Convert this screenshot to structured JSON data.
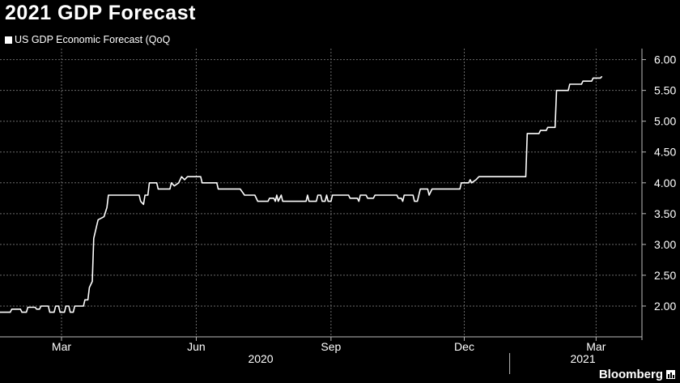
{
  "title": "2021 GDP Forecast",
  "legend_label": "US GDP Economic Forecast (QoQ",
  "brand": "Bloomberg",
  "colors": {
    "background": "#000000",
    "line": "#ffffff",
    "grid": "#6a6a6a",
    "text": "#ffffff"
  },
  "chart_data": {
    "type": "line",
    "title": "2021 GDP Forecast",
    "grid": true,
    "legend_position": "top-left",
    "x_range": [
      "2020-01-19",
      "2021-03-29"
    ],
    "ylim": [
      1.5,
      6.1
    ],
    "y_ticks": [
      "2.00",
      "2.50",
      "3.00",
      "3.50",
      "4.00",
      "4.50",
      "5.00",
      "5.50",
      "6.00"
    ],
    "x_ticks": [
      {
        "date": "2020-03-01",
        "label": "Mar"
      },
      {
        "date": "2020-06-01",
        "label": "Jun"
      },
      {
        "date": "2020-09-01",
        "label": "Sep"
      },
      {
        "date": "2020-12-01",
        "label": "Dec"
      },
      {
        "date": "2021-03-01",
        "label": "Mar"
      }
    ],
    "year_labels": [
      {
        "date": "2020-07-15",
        "label": "2020"
      },
      {
        "date": "2021-02-20",
        "label": "2021"
      }
    ],
    "year_separators": [
      "2020-01-01",
      "2021-01-01"
    ],
    "series": [
      {
        "name": "US GDP Economic Forecast (QoQ",
        "points": [
          [
            "2020-01-19",
            1.9
          ],
          [
            "2020-01-26",
            1.9
          ],
          [
            "2020-01-27",
            1.95
          ],
          [
            "2020-02-02",
            1.95
          ],
          [
            "2020-02-03",
            1.9
          ],
          [
            "2020-02-06",
            1.9
          ],
          [
            "2020-02-07",
            1.98
          ],
          [
            "2020-02-12",
            1.98
          ],
          [
            "2020-02-13",
            1.95
          ],
          [
            "2020-02-15",
            1.95
          ],
          [
            "2020-02-16",
            2.0
          ],
          [
            "2020-02-21",
            2.0
          ],
          [
            "2020-02-22",
            1.9
          ],
          [
            "2020-02-25",
            1.9
          ],
          [
            "2020-02-26",
            2.0
          ],
          [
            "2020-02-28",
            2.0
          ],
          [
            "2020-02-29",
            1.9
          ],
          [
            "2020-03-03",
            1.9
          ],
          [
            "2020-03-04",
            2.0
          ],
          [
            "2020-03-06",
            2.0
          ],
          [
            "2020-03-07",
            1.9
          ],
          [
            "2020-03-09",
            1.9
          ],
          [
            "2020-03-10",
            2.0
          ],
          [
            "2020-03-16",
            2.0
          ],
          [
            "2020-03-17",
            2.1
          ],
          [
            "2020-03-19",
            2.1
          ],
          [
            "2020-03-20",
            2.3
          ],
          [
            "2020-03-22",
            2.4
          ],
          [
            "2020-03-23",
            3.1
          ],
          [
            "2020-03-25",
            3.3
          ],
          [
            "2020-03-26",
            3.4
          ],
          [
            "2020-03-30",
            3.45
          ],
          [
            "2020-04-01",
            3.6
          ],
          [
            "2020-04-02",
            3.8
          ],
          [
            "2020-04-23",
            3.8
          ],
          [
            "2020-04-24",
            3.7
          ],
          [
            "2020-04-26",
            3.65
          ],
          [
            "2020-04-27",
            3.8
          ],
          [
            "2020-04-29",
            3.8
          ],
          [
            "2020-04-30",
            4.0
          ],
          [
            "2020-05-05",
            4.0
          ],
          [
            "2020-05-06",
            3.9
          ],
          [
            "2020-05-14",
            3.9
          ],
          [
            "2020-05-15",
            4.0
          ],
          [
            "2020-05-17",
            3.95
          ],
          [
            "2020-05-20",
            4.0
          ],
          [
            "2020-05-22",
            4.1
          ],
          [
            "2020-05-24",
            4.05
          ],
          [
            "2020-05-26",
            4.1
          ],
          [
            "2020-06-04",
            4.1
          ],
          [
            "2020-06-05",
            4.0
          ],
          [
            "2020-06-15",
            4.0
          ],
          [
            "2020-06-16",
            3.9
          ],
          [
            "2020-07-01",
            3.9
          ],
          [
            "2020-07-04",
            3.8
          ],
          [
            "2020-07-11",
            3.8
          ],
          [
            "2020-07-13",
            3.7
          ],
          [
            "2020-07-20",
            3.7
          ],
          [
            "2020-07-21",
            3.75
          ],
          [
            "2020-07-24",
            3.75
          ],
          [
            "2020-07-25",
            3.7
          ],
          [
            "2020-07-26",
            3.8
          ],
          [
            "2020-07-27",
            3.7
          ],
          [
            "2020-07-29",
            3.8
          ],
          [
            "2020-07-30",
            3.7
          ],
          [
            "2020-08-15",
            3.7
          ],
          [
            "2020-08-16",
            3.8
          ],
          [
            "2020-08-17",
            3.7
          ],
          [
            "2020-08-22",
            3.7
          ],
          [
            "2020-08-23",
            3.8
          ],
          [
            "2020-08-25",
            3.8
          ],
          [
            "2020-08-26",
            3.7
          ],
          [
            "2020-08-28",
            3.7
          ],
          [
            "2020-08-29",
            3.8
          ],
          [
            "2020-08-30",
            3.7
          ],
          [
            "2020-09-01",
            3.7
          ],
          [
            "2020-09-02",
            3.8
          ],
          [
            "2020-09-13",
            3.8
          ],
          [
            "2020-09-14",
            3.75
          ],
          [
            "2020-09-19",
            3.75
          ],
          [
            "2020-09-20",
            3.7
          ],
          [
            "2020-09-21",
            3.8
          ],
          [
            "2020-09-25",
            3.8
          ],
          [
            "2020-09-26",
            3.75
          ],
          [
            "2020-09-30",
            3.75
          ],
          [
            "2020-10-01",
            3.8
          ],
          [
            "2020-10-16",
            3.8
          ],
          [
            "2020-10-17",
            3.75
          ],
          [
            "2020-10-19",
            3.75
          ],
          [
            "2020-10-20",
            3.7
          ],
          [
            "2020-10-21",
            3.8
          ],
          [
            "2020-10-27",
            3.8
          ],
          [
            "2020-10-28",
            3.7
          ],
          [
            "2020-10-30",
            3.7
          ],
          [
            "2020-11-01",
            3.9
          ],
          [
            "2020-11-06",
            3.9
          ],
          [
            "2020-11-07",
            3.8
          ],
          [
            "2020-11-09",
            3.9
          ],
          [
            "2020-11-28",
            3.9
          ],
          [
            "2020-11-29",
            4.0
          ],
          [
            "2020-12-04",
            4.0
          ],
          [
            "2020-12-05",
            4.05
          ],
          [
            "2020-12-06",
            4.0
          ],
          [
            "2020-12-09",
            4.05
          ],
          [
            "2020-12-11",
            4.1
          ],
          [
            "2021-01-12",
            4.1
          ],
          [
            "2021-01-13",
            4.8
          ],
          [
            "2021-01-21",
            4.8
          ],
          [
            "2021-01-22",
            4.85
          ],
          [
            "2021-01-26",
            4.85
          ],
          [
            "2021-01-27",
            4.9
          ],
          [
            "2021-02-01",
            4.9
          ],
          [
            "2021-02-02",
            5.5
          ],
          [
            "2021-02-10",
            5.5
          ],
          [
            "2021-02-11",
            5.6
          ],
          [
            "2021-02-19",
            5.6
          ],
          [
            "2021-02-20",
            5.65
          ],
          [
            "2021-02-26",
            5.65
          ],
          [
            "2021-02-27",
            5.7
          ],
          [
            "2021-03-04",
            5.7
          ],
          [
            "2021-03-05",
            5.73
          ]
        ]
      }
    ]
  }
}
